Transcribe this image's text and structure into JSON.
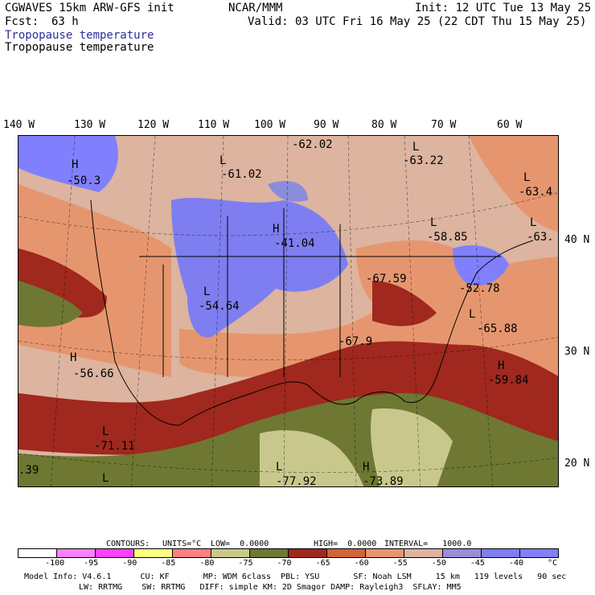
{
  "header": {
    "model": "CGWAVES 15km ARW-GFS init",
    "org": "NCAR/MMM",
    "init": "Init: 12 UTC Tue 13 May 25",
    "fcst_label": "Fcst:",
    "fcst_value": "63 h",
    "valid": "Valid: 03 UTC Fri 16 May 25 (22 CDT Thu 15 May 25)",
    "field1": "Tropopause temperature",
    "field2": "Tropopause temperature"
  },
  "lon_labels": [
    "140 W",
    "130 W",
    "120 W",
    "110 W",
    "100 W",
    "90 W",
    "80 W",
    "70 W",
    "60 W"
  ],
  "lat_labels": [
    "40 N",
    "30 N",
    "20 N"
  ],
  "centers": [
    {
      "sym": "H",
      "val": "-50.3"
    },
    {
      "sym": "L",
      "val": "-61.02"
    },
    {
      "sym": "",
      "val": "-62.02"
    },
    {
      "sym": "L",
      "val": "-63.22"
    },
    {
      "sym": "L",
      "val": "-63.4"
    },
    {
      "sym": "L",
      "val": "-63."
    },
    {
      "sym": "H",
      "val": "-41.04"
    },
    {
      "sym": "L",
      "val": "-58.85"
    },
    {
      "sym": "",
      "val": "-67.59"
    },
    {
      "sym": "",
      "val": "-52.78"
    },
    {
      "sym": "L",
      "val": "-54.64"
    },
    {
      "sym": "L",
      "val": "-65.88"
    },
    {
      "sym": "",
      "val": "-67.9"
    },
    {
      "sym": "H",
      "val": "-56.66"
    },
    {
      "sym": "H",
      "val": "-59.84"
    },
    {
      "sym": "L",
      "val": "-71.11"
    },
    {
      "sym": "L",
      "val": "-77.92"
    },
    {
      "sym": "H",
      "val": "-73.89"
    },
    {
      "sym": "",
      "val": ".39"
    },
    {
      "sym": "L",
      "val": ""
    }
  ],
  "contour_info": {
    "contours": "CONTOURS:",
    "units": "UNITS=°C",
    "low": "LOW=  0.0000",
    "high": "HIGH=  0.0000",
    "interval": "INTERVAL=   1000.0"
  },
  "colorbar": {
    "colors": [
      "#ffffff",
      "#ff80ff",
      "#ff40ff",
      "#ffff80",
      "#ff8080",
      "#c8c88c",
      "#6e7832",
      "#a0281e",
      "#d2643c",
      "#e6966e",
      "#dcb4a0",
      "#9b8cdc",
      "#7e7ef0",
      "#8080ff"
    ],
    "ticks": [
      "-100",
      "-95",
      "-90",
      "-85",
      "-80",
      "-75",
      "-70",
      "-65",
      "-60",
      "-55",
      "-50",
      "-45",
      "-40",
      "°C"
    ]
  },
  "footer": {
    "line1": "Model Info: V4.6.1      CU: KF       MP: WDM 6class  PBL: YSU       SF: Noah LSM     15 km   119 levels   90 sec",
    "line2": "LW: RRTMG    SW: RRTMG   DIFF: simple KM: 2D Smagor DAMP: Rayleigh3  SFLAY: MM5"
  }
}
